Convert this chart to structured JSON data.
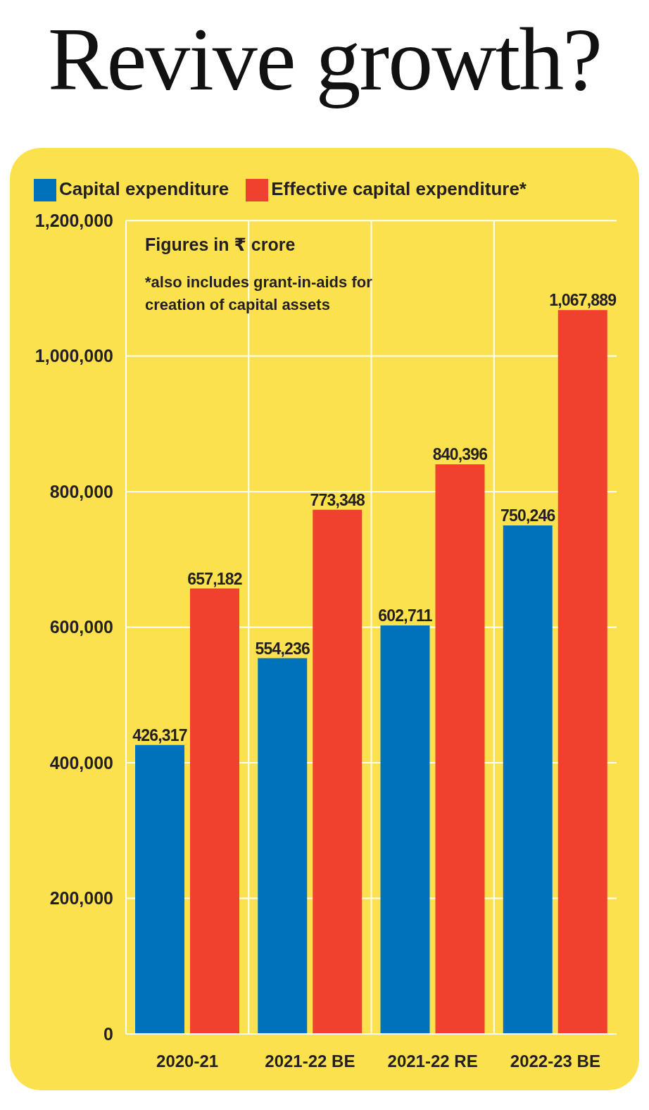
{
  "chart_data": {
    "type": "bar",
    "title": "Revive growth?",
    "annotations": [
      "Figures in ₹ crore",
      "*also includes grant-in-aids for creation of capital assets"
    ],
    "categories": [
      "2020-21",
      "2021-22 BE",
      "2021-22 RE",
      "2022-23 BE"
    ],
    "series": [
      {
        "name": "Capital expenditure",
        "color": "#0072bc",
        "values": [
          426317,
          554236,
          602711,
          750246
        ],
        "value_labels": [
          "426,317",
          "554,236",
          "602,711",
          "750,246"
        ]
      },
      {
        "name": "Effective capital expenditure*",
        "color": "#ef412d",
        "values": [
          657182,
          773348,
          840396,
          1067889
        ],
        "value_labels": [
          "657,182",
          "773,348",
          "840,396",
          "1,067,889"
        ]
      }
    ],
    "ylim": [
      0,
      1200000
    ],
    "yticks": [
      0,
      {
        "value": 200000,
        "label": "200,000"
      },
      {
        "value": 400000,
        "label": "400,000"
      },
      {
        "value": 600000,
        "label": "600,000"
      },
      {
        "value": 800000,
        "label": "800,000"
      },
      {
        "value": 1000000,
        "label": "1,000,000"
      },
      {
        "value": 1200000,
        "label": "1,200,000"
      }
    ],
    "grid": true,
    "legend": "top left"
  }
}
